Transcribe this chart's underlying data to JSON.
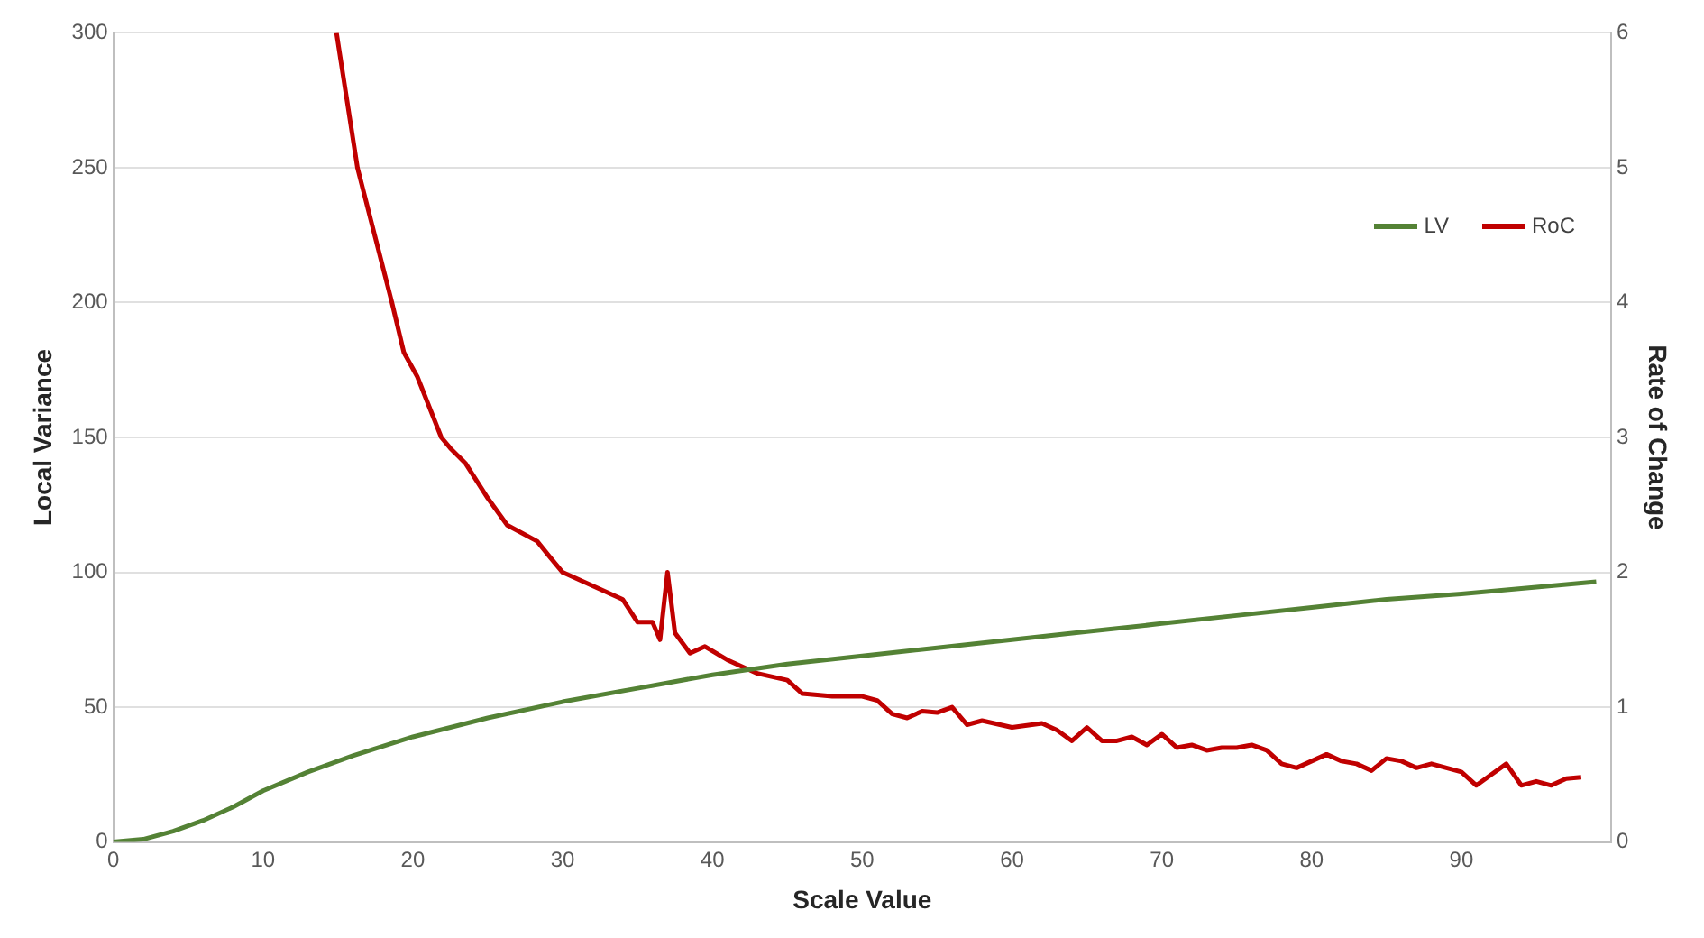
{
  "chart_data": {
    "type": "line",
    "xlabel": "Scale Value",
    "ylabel": "Local Variance",
    "y2label": "Rate of Change",
    "xlim": [
      0,
      100
    ],
    "xticks": [
      0,
      10,
      20,
      30,
      40,
      50,
      60,
      70,
      80,
      90
    ],
    "ylim": [
      0,
      300
    ],
    "yticks": [
      0,
      50,
      100,
      150,
      200,
      250,
      300
    ],
    "y2lim": [
      0,
      6
    ],
    "y2ticks": [
      0,
      1,
      2,
      3,
      4,
      5,
      6
    ],
    "grid": "y",
    "legend": "top right",
    "marker": "none",
    "line_style": "solid",
    "series": [
      {
        "name": "LV",
        "color": "#548235",
        "x": [
          0,
          2,
          4,
          6,
          8,
          10,
          13,
          16,
          20,
          25,
          30,
          35,
          40,
          45,
          50,
          55,
          60,
          65,
          70,
          75,
          80,
          85,
          90,
          95,
          99
        ],
        "values": [
          0,
          1,
          4,
          8,
          13,
          19,
          26,
          32,
          39,
          46,
          52,
          57,
          62,
          66,
          69,
          72,
          75,
          78,
          81,
          84,
          87,
          90,
          92,
          94.5,
          96.5
        ]
      },
      {
        "name": "RoC",
        "color": "#c00000",
        "axis": "y2",
        "x": [
          14.9,
          16.3,
          18.6,
          19.4,
          20.3,
          21.9,
          22.5,
          23.5,
          25,
          26.3,
          28.3,
          29.1,
          30,
          32,
          34,
          35,
          36,
          36.5,
          37,
          37.5,
          38.5,
          39.5,
          41,
          43,
          45,
          46,
          48,
          50,
          51,
          52,
          53,
          54,
          55,
          56,
          57,
          58,
          60,
          62,
          63,
          64,
          65,
          66,
          67,
          68,
          69,
          70,
          71,
          72,
          73,
          74,
          75,
          76,
          77,
          78,
          79,
          80,
          81,
          82,
          83,
          84,
          85,
          86,
          87,
          88,
          89,
          90,
          91,
          92,
          93,
          94,
          95,
          96,
          97,
          98
        ],
        "values": [
          6,
          5,
          4,
          3.63,
          3.45,
          3,
          2.92,
          2.81,
          2.55,
          2.35,
          2.23,
          2.12,
          2,
          1.9,
          1.8,
          1.63,
          1.63,
          1.5,
          2,
          1.55,
          1.4,
          1.45,
          1.35,
          1.25,
          1.2,
          1.1,
          1.08,
          1.08,
          1.05,
          0.95,
          0.92,
          0.97,
          0.96,
          1,
          0.87,
          0.9,
          0.85,
          0.88,
          0.83,
          0.75,
          0.85,
          0.75,
          0.75,
          0.78,
          0.72,
          0.8,
          0.7,
          0.72,
          0.68,
          0.7,
          0.7,
          0.72,
          0.68,
          0.58,
          0.55,
          0.6,
          0.65,
          0.6,
          0.58,
          0.53,
          0.62,
          0.6,
          0.55,
          0.58,
          0.55,
          0.52,
          0.42,
          0.5,
          0.58,
          0.42,
          0.45,
          0.42,
          0.47,
          0.48
        ]
      }
    ]
  }
}
